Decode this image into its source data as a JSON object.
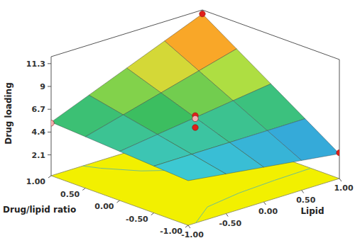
{
  "chart_data": {
    "type": "surface",
    "x_label": "Lipid",
    "y_label": "Drug/lipid ratio",
    "z_label": "Drug loading",
    "x": [
      -1,
      -0.5,
      0,
      0.5,
      1
    ],
    "y": [
      -1,
      -0.5,
      0,
      0.5,
      1
    ],
    "z": [
      [
        4.5,
        4.0,
        3.5,
        3.0,
        2.5
      ],
      [
        4.72,
        4.74,
        4.75,
        4.76,
        4.78
      ],
      [
        4.95,
        5.48,
        6.0,
        6.53,
        7.05
      ],
      [
        5.18,
        6.21,
        7.25,
        8.29,
        9.33
      ],
      [
        5.4,
        6.95,
        8.5,
        10.05,
        11.6
      ]
    ],
    "xlim": [
      -1,
      1
    ],
    "ylim": [
      -1,
      1
    ],
    "zlim": [
      0,
      12
    ],
    "xticks": [
      {
        "value": -1,
        "label": "-1.00"
      },
      {
        "value": -0.5,
        "label": "-0.50"
      },
      {
        "value": 0,
        "label": "0.00"
      },
      {
        "value": 0.5,
        "label": "0.50"
      },
      {
        "value": 1,
        "label": "1.00"
      }
    ],
    "yticks": [
      {
        "value": -1,
        "label": "-1.00"
      },
      {
        "value": -0.5,
        "label": "-0.50"
      },
      {
        "value": 0,
        "label": "0.00"
      },
      {
        "value": 0.5,
        "label": "0.50"
      },
      {
        "value": 1,
        "label": "1.00"
      }
    ],
    "zticks": [
      2.1,
      4.4,
      6.7,
      9,
      11.3
    ],
    "points": {
      "x": [
        1,
        -1,
        1,
        0,
        0,
        0
      ],
      "y": [
        1,
        1,
        -1,
        0,
        0,
        0
      ],
      "values": [
        11.6,
        5.3,
        2.6,
        6.2,
        5.9,
        5.0
      ],
      "colors": [
        "#e0201a",
        "#f4b0b0",
        "#e0201a",
        "#e0201a",
        "#f4b0b0",
        "#e0201a"
      ]
    }
  }
}
